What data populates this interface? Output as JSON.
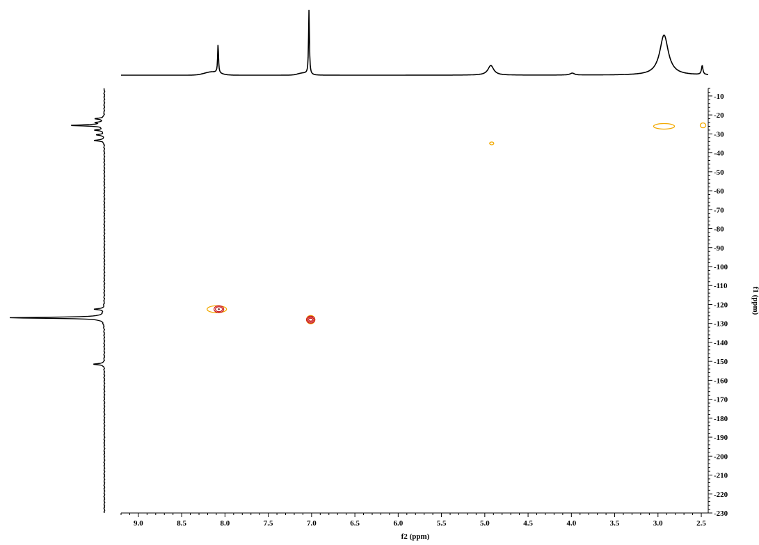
{
  "chart_data": {
    "type": "2d-nmr-contour",
    "title": "",
    "xlabel": "f2 (ppm)",
    "ylabel": "f1 (ppm)",
    "xlim": [
      9.2,
      2.42
    ],
    "ylim": [
      230,
      6
    ],
    "x_axis_reversed": true,
    "y_axis_position": "right",
    "x_ticks": [
      "9.0",
      "8.5",
      "8.0",
      "7.5",
      "7.0",
      "6.5",
      "6.0",
      "5.5",
      "5.0",
      "4.5",
      "4.0",
      "3.5",
      "3.0",
      "2.5"
    ],
    "y_ticks": [
      "10",
      "20",
      "30",
      "40",
      "50",
      "60",
      "70",
      "80",
      "90",
      "100",
      "110",
      "120",
      "130",
      "140",
      "150",
      "160",
      "170",
      "180",
      "190",
      "200",
      "210",
      "220",
      "230"
    ],
    "grid": false,
    "legend": "none",
    "colors": {
      "outer_contour": "#f2a900",
      "inner_contour": "#cc1a1a",
      "core": "#5a1010",
      "trace": "#000000"
    },
    "cross_peaks": [
      {
        "f2": 8.07,
        "f1": 122.5
      },
      {
        "f2": 7.01,
        "f1": 128.0
      },
      {
        "f2": 4.92,
        "f1": 35.0
      },
      {
        "f2": 2.93,
        "f1": 26.0
      },
      {
        "f2": 2.48,
        "f1": 25.5
      }
    ],
    "f2_projection_peaks": [
      {
        "ppm": 8.08,
        "intensity": 0.45
      },
      {
        "ppm": 7.03,
        "intensity": 1.0
      },
      {
        "ppm": 4.93,
        "intensity": 0.15
      },
      {
        "ppm": 3.99,
        "intensity": 0.03
      },
      {
        "ppm": 2.93,
        "intensity": 0.62
      },
      {
        "ppm": 2.49,
        "intensity": 0.14
      }
    ],
    "f1_projection_peaks": [
      {
        "ppm": 22.0,
        "intensity": 0.1
      },
      {
        "ppm": 24.0,
        "intensity": 0.08
      },
      {
        "ppm": 25.5,
        "intensity": 0.36
      },
      {
        "ppm": 28.0,
        "intensity": 0.1
      },
      {
        "ppm": 30.5,
        "intensity": 0.08
      },
      {
        "ppm": 33.5,
        "intensity": 0.11
      },
      {
        "ppm": 122.5,
        "intensity": 0.1
      },
      {
        "ppm": 127.0,
        "intensity": 1.0
      },
      {
        "ppm": 151.5,
        "intensity": 0.12
      }
    ]
  }
}
